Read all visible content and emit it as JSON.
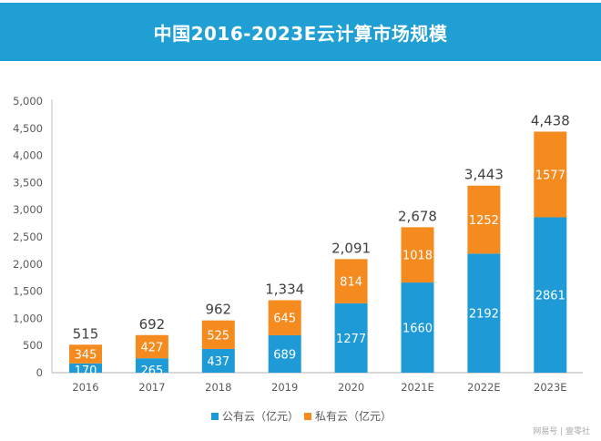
{
  "banner": {
    "title": "中国2016-2023E云计算市场规模"
  },
  "colors": {
    "public": "#1e9bd7",
    "private": "#f58a1f",
    "banner": "#1f9fd4",
    "axis": "#bfbfbf"
  },
  "legend": {
    "public_label": "公有云（亿元）",
    "private_label": "私有云（亿元）"
  },
  "watermark": "网易号 | 壹零社",
  "chart_data": {
    "type": "bar",
    "stacked": true,
    "title": "中国2016-2023E云计算市场规模",
    "xlabel": "",
    "ylabel": "",
    "categories": [
      "2016",
      "2017",
      "2018",
      "2019",
      "2020",
      "2021E",
      "2022E",
      "2023E"
    ],
    "series": [
      {
        "name": "公有云（亿元）",
        "color": "#1e9bd7",
        "values": [
          170,
          265,
          437,
          689,
          1277,
          1660,
          2192,
          2861
        ]
      },
      {
        "name": "私有云（亿元）",
        "color": "#f58a1f",
        "values": [
          345,
          427,
          525,
          645,
          814,
          1018,
          1252,
          1577
        ]
      }
    ],
    "totals": [
      "515",
      "692",
      "962",
      "1,334",
      "2,091",
      "2,678",
      "3,443",
      "4,438"
    ],
    "segment_labels": {
      "public": [
        "170",
        "265",
        "437",
        "689",
        "1277",
        "1660",
        "2192",
        "2861"
      ],
      "private": [
        "345",
        "427",
        "525",
        "645",
        "814",
        "1018",
        "1252",
        "1577"
      ]
    },
    "ylim": [
      0,
      5000
    ],
    "yticks": [
      0,
      500,
      1000,
      1500,
      2000,
      2500,
      3000,
      3500,
      4000,
      4500,
      5000
    ],
    "ytick_labels": [
      "0",
      "500",
      "1,000",
      "1,500",
      "2,000",
      "2,500",
      "3,000",
      "3,500",
      "4,000",
      "4,500",
      "5,000"
    ],
    "grid": false,
    "legend_position": "bottom"
  }
}
